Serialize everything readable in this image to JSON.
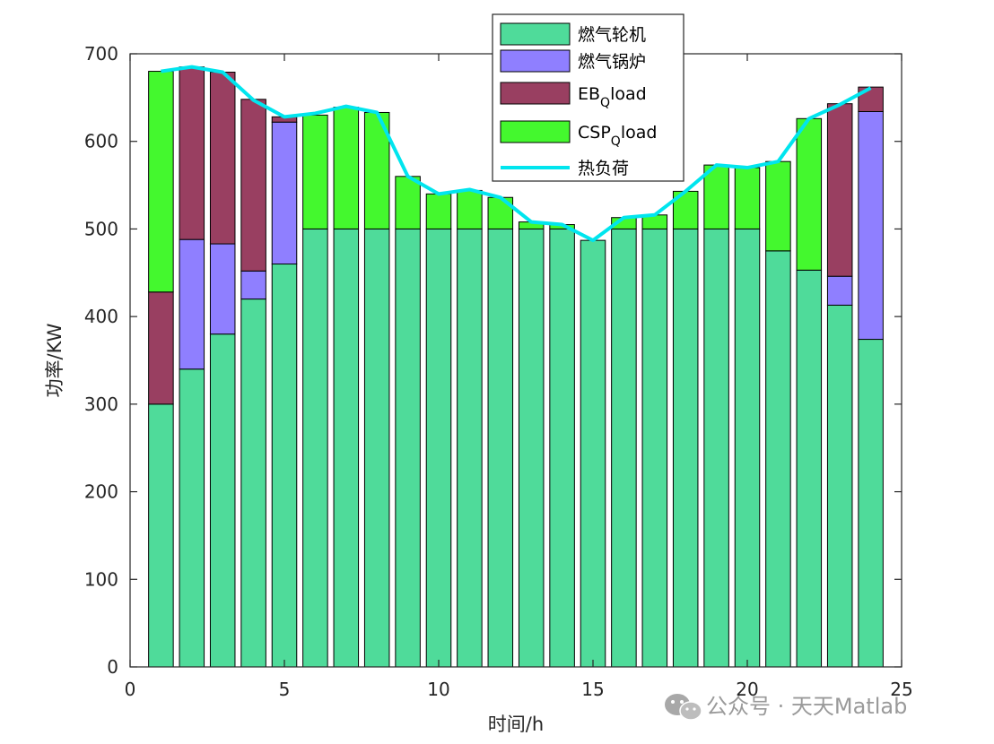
{
  "chart_data": {
    "type": "bar",
    "stacked": true,
    "xlabel": "时间/h",
    "ylabel": "功率/KW",
    "xlim": [
      0,
      25
    ],
    "ylim": [
      0,
      700
    ],
    "xticks": [
      "0",
      "5",
      "10",
      "15",
      "20",
      "25"
    ],
    "yticks": [
      "0",
      "100",
      "200",
      "300",
      "400",
      "500",
      "600",
      "700"
    ],
    "grid": false,
    "legend_position": "top-center",
    "x": [
      1,
      2,
      3,
      4,
      5,
      6,
      7,
      8,
      9,
      10,
      11,
      12,
      13,
      14,
      15,
      16,
      17,
      18,
      19,
      20,
      21,
      22,
      23,
      24
    ],
    "series": [
      {
        "name": "燃气轮机",
        "color": "#4fdb9a",
        "values": [
          300,
          340,
          380,
          420,
          460,
          500,
          500,
          500,
          500,
          500,
          500,
          500,
          500,
          500,
          487,
          500,
          500,
          500,
          500,
          500,
          475,
          453,
          413,
          374
        ]
      },
      {
        "name": "燃气锅炉",
        "color": "#8f7fff",
        "values": [
          0,
          148,
          103,
          32,
          162,
          0,
          0,
          0,
          0,
          0,
          0,
          0,
          0,
          0,
          0,
          0,
          0,
          0,
          0,
          0,
          0,
          0,
          33,
          260
        ]
      },
      {
        "name": "EB",
        "name_sub": "Q",
        "name_suffix": "load",
        "color": "#993f61",
        "values": [
          128,
          197,
          196,
          196,
          6,
          0,
          0,
          0,
          0,
          0,
          0,
          0,
          0,
          0,
          0,
          0,
          0,
          0,
          0,
          0,
          0,
          0,
          197,
          28
        ]
      },
      {
        "name": "CSP",
        "name_sub": "Q",
        "name_suffix": "load",
        "color": "#44f82e",
        "values": [
          252,
          0,
          0,
          0,
          0,
          130,
          139,
          133,
          60,
          40,
          44,
          36,
          8,
          5,
          0,
          13,
          16,
          43,
          73,
          70,
          102,
          173,
          0,
          0
        ]
      }
    ],
    "line_series": {
      "name": "热负荷",
      "color": "#00e5ee",
      "x": [
        1,
        2,
        3,
        4,
        5,
        6,
        7,
        8,
        9,
        10,
        11,
        12,
        13,
        14,
        15,
        16,
        17,
        18,
        19,
        20,
        21,
        22,
        23,
        24
      ],
      "values": [
        680,
        685,
        679,
        647,
        628,
        632,
        640,
        633,
        560,
        540,
        545,
        536,
        508,
        505,
        487,
        513,
        516,
        543,
        573,
        570,
        577,
        626,
        642,
        661
      ]
    }
  },
  "watermark": {
    "icon": "wechat-icon",
    "text": "公众号 · 天天Matlab"
  }
}
